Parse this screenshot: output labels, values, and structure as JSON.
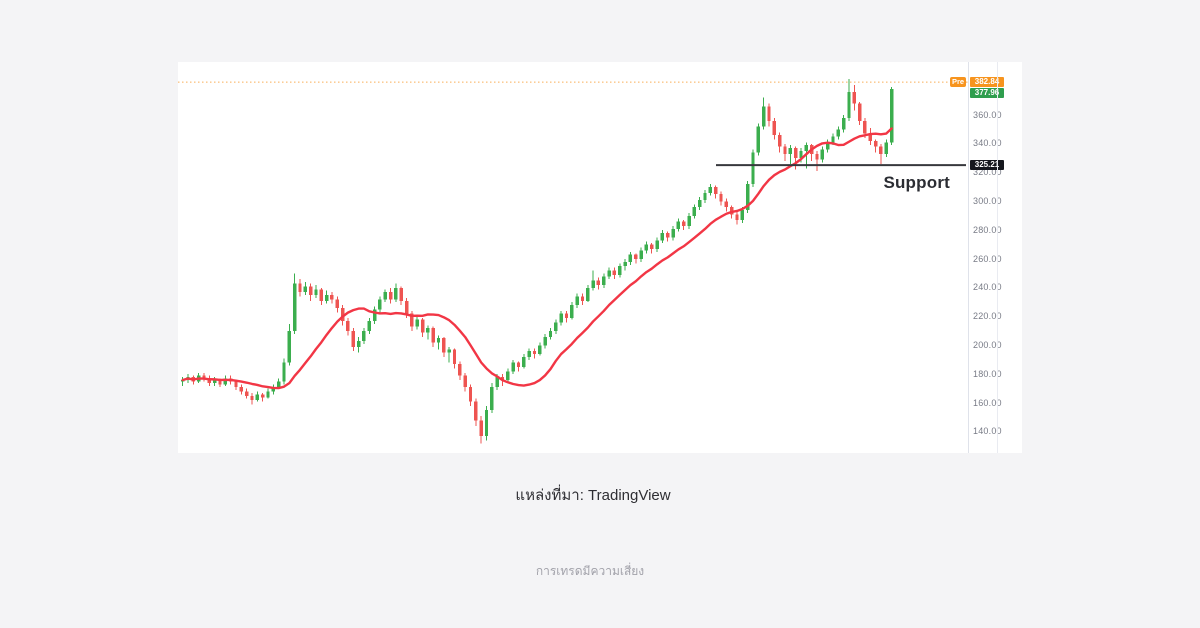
{
  "page": {
    "source_caption": "แหล่งที่มา: TradingView",
    "disclaimer": "การเทรดมีความเสี่ยง"
  },
  "chart_data": {
    "type": "candlestick",
    "title": "",
    "description": "Daily price chart with red moving-average overlay, orange pre-market dotted level, and a horizontal support level annotation",
    "ylim": [
      125.3,
      396.8
    ],
    "grid": false,
    "y_axis": {
      "side": "right",
      "tick_values": [
        360,
        340,
        320,
        300,
        280,
        260,
        240,
        220,
        200,
        180,
        160,
        140
      ],
      "tick_labels": [
        "360.00",
        "340.00",
        "320.00",
        "300.00",
        "280.00",
        "260.00",
        "240.00",
        "220.00",
        "200.00",
        "180.00",
        "160.00",
        "140.00"
      ],
      "tick_color": "#787b86"
    },
    "pre_market": {
      "label": "Pre",
      "price": 382.84,
      "display": "382.84",
      "color": "#f7941e",
      "line_style": "dotted"
    },
    "last_price": {
      "price": 377.96,
      "display": "377.96",
      "color": "#2f9e4e"
    },
    "support": {
      "label": "Support",
      "price": 325.21,
      "display": "325.21",
      "badge_color": "#16181e",
      "line_color": "#37383d",
      "line_start_x": 538,
      "line_end_x": 788
    },
    "ma_line": {
      "period": 14,
      "color": "#f23645"
    },
    "candle_colors": {
      "up": "#3bae4e",
      "down": "#ee5451"
    },
    "candles": [
      [
        175,
        178,
        172,
        176
      ],
      [
        176,
        180,
        174,
        178
      ],
      [
        178,
        179,
        173,
        175
      ],
      [
        175,
        181,
        174,
        179
      ],
      [
        179,
        181,
        175,
        177
      ],
      [
        177,
        179,
        172,
        174
      ],
      [
        174,
        178,
        172,
        176
      ],
      [
        176,
        177,
        171,
        173
      ],
      [
        173,
        179,
        172,
        177
      ],
      [
        177,
        179,
        173,
        175
      ],
      [
        175,
        176,
        169,
        171
      ],
      [
        171,
        173,
        166,
        168
      ],
      [
        168,
        170,
        163,
        165
      ],
      [
        165,
        167,
        159,
        162
      ],
      [
        162,
        168,
        161,
        166
      ],
      [
        166,
        167,
        161,
        164
      ],
      [
        164,
        170,
        163,
        168
      ],
      [
        168,
        173,
        166,
        171
      ],
      [
        171,
        177,
        170,
        175
      ],
      [
        175,
        191,
        173,
        188
      ],
      [
        188,
        215,
        186,
        210
      ],
      [
        210,
        250,
        208,
        243
      ],
      [
        243,
        246,
        234,
        237
      ],
      [
        237,
        244,
        235,
        241
      ],
      [
        241,
        243,
        231,
        235
      ],
      [
        235,
        242,
        233,
        239
      ],
      [
        239,
        240,
        228,
        231
      ],
      [
        231,
        238,
        229,
        235
      ],
      [
        235,
        237,
        229,
        232
      ],
      [
        232,
        234,
        223,
        226
      ],
      [
        226,
        228,
        214,
        217
      ],
      [
        217,
        219,
        207,
        210
      ],
      [
        210,
        212,
        196,
        199
      ],
      [
        199,
        206,
        195,
        203
      ],
      [
        203,
        212,
        201,
        210
      ],
      [
        210,
        219,
        208,
        217
      ],
      [
        217,
        227,
        215,
        225
      ],
      [
        225,
        234,
        223,
        232
      ],
      [
        232,
        239,
        230,
        237
      ],
      [
        237,
        240,
        229,
        232
      ],
      [
        232,
        243,
        230,
        240
      ],
      [
        240,
        241,
        228,
        231
      ],
      [
        231,
        233,
        219,
        222
      ],
      [
        222,
        224,
        210,
        213
      ],
      [
        213,
        220,
        211,
        218
      ],
      [
        218,
        219,
        206,
        209
      ],
      [
        209,
        214,
        204,
        212
      ],
      [
        212,
        213,
        199,
        202
      ],
      [
        202,
        207,
        197,
        205
      ],
      [
        205,
        206,
        192,
        195
      ],
      [
        195,
        199,
        188,
        197
      ],
      [
        197,
        198,
        184,
        187
      ],
      [
        187,
        189,
        176,
        179
      ],
      [
        179,
        181,
        168,
        171
      ],
      [
        171,
        173,
        158,
        161
      ],
      [
        161,
        163,
        144,
        148
      ],
      [
        148,
        151,
        132,
        137
      ],
      [
        137,
        158,
        134,
        155
      ],
      [
        155,
        174,
        153,
        171
      ],
      [
        171,
        180,
        169,
        178
      ],
      [
        178,
        180,
        172,
        176
      ],
      [
        176,
        184,
        174,
        182
      ],
      [
        182,
        190,
        180,
        188
      ],
      [
        188,
        189,
        182,
        185
      ],
      [
        185,
        194,
        184,
        192
      ],
      [
        192,
        198,
        190,
        196
      ],
      [
        196,
        198,
        191,
        194
      ],
      [
        194,
        202,
        193,
        200
      ],
      [
        200,
        208,
        198,
        206
      ],
      [
        206,
        212,
        204,
        210
      ],
      [
        210,
        218,
        208,
        216
      ],
      [
        216,
        224,
        214,
        222
      ],
      [
        222,
        224,
        216,
        219
      ],
      [
        219,
        230,
        218,
        228
      ],
      [
        228,
        236,
        226,
        234
      ],
      [
        234,
        236,
        228,
        231
      ],
      [
        231,
        242,
        230,
        240
      ],
      [
        240,
        252,
        238,
        245
      ],
      [
        245,
        247,
        239,
        242
      ],
      [
        242,
        250,
        240,
        248
      ],
      [
        248,
        254,
        246,
        252
      ],
      [
        252,
        254,
        246,
        249
      ],
      [
        249,
        257,
        247,
        255
      ],
      [
        255,
        260,
        252,
        258
      ],
      [
        258,
        265,
        256,
        263
      ],
      [
        263,
        264,
        257,
        260
      ],
      [
        260,
        268,
        258,
        266
      ],
      [
        266,
        272,
        264,
        270
      ],
      [
        270,
        271,
        264,
        267
      ],
      [
        267,
        275,
        265,
        273
      ],
      [
        273,
        280,
        271,
        278
      ],
      [
        278,
        279,
        272,
        275
      ],
      [
        275,
        283,
        273,
        281
      ],
      [
        281,
        288,
        279,
        286
      ],
      [
        286,
        287,
        280,
        283
      ],
      [
        283,
        292,
        281,
        290
      ],
      [
        290,
        298,
        288,
        296
      ],
      [
        296,
        303,
        294,
        301
      ],
      [
        301,
        308,
        299,
        306
      ],
      [
        306,
        312,
        304,
        310
      ],
      [
        310,
        311,
        302,
        305
      ],
      [
        305,
        307,
        297,
        300
      ],
      [
        300,
        302,
        293,
        296
      ],
      [
        296,
        297,
        288,
        291
      ],
      [
        291,
        293,
        284,
        287
      ],
      [
        287,
        296,
        285,
        294
      ],
      [
        294,
        314,
        292,
        312
      ],
      [
        312,
        336,
        310,
        334
      ],
      [
        334,
        354,
        332,
        352
      ],
      [
        352,
        372,
        350,
        366
      ],
      [
        366,
        368,
        352,
        356
      ],
      [
        356,
        358,
        343,
        346
      ],
      [
        346,
        348,
        334,
        338
      ],
      [
        338,
        340,
        328,
        333
      ],
      [
        333,
        339,
        326,
        337
      ],
      [
        337,
        338,
        322,
        330
      ],
      [
        330,
        337,
        327,
        335
      ],
      [
        335,
        341,
        323,
        339
      ],
      [
        339,
        340,
        328,
        333
      ],
      [
        333,
        335,
        321,
        329
      ],
      [
        329,
        338,
        327,
        336
      ],
      [
        336,
        343,
        334,
        341
      ],
      [
        341,
        347,
        339,
        345
      ],
      [
        345,
        352,
        343,
        350
      ],
      [
        350,
        360,
        348,
        358
      ],
      [
        358,
        385,
        356,
        376
      ],
      [
        376,
        381,
        363,
        368
      ],
      [
        368,
        369,
        353,
        356
      ],
      [
        356,
        358,
        344,
        347
      ],
      [
        347,
        351,
        339,
        342
      ],
      [
        342,
        343,
        334,
        338
      ],
      [
        338,
        340,
        326,
        333
      ],
      [
        333,
        343,
        331,
        341
      ],
      [
        341,
        379.5,
        339,
        377.96
      ]
    ]
  }
}
